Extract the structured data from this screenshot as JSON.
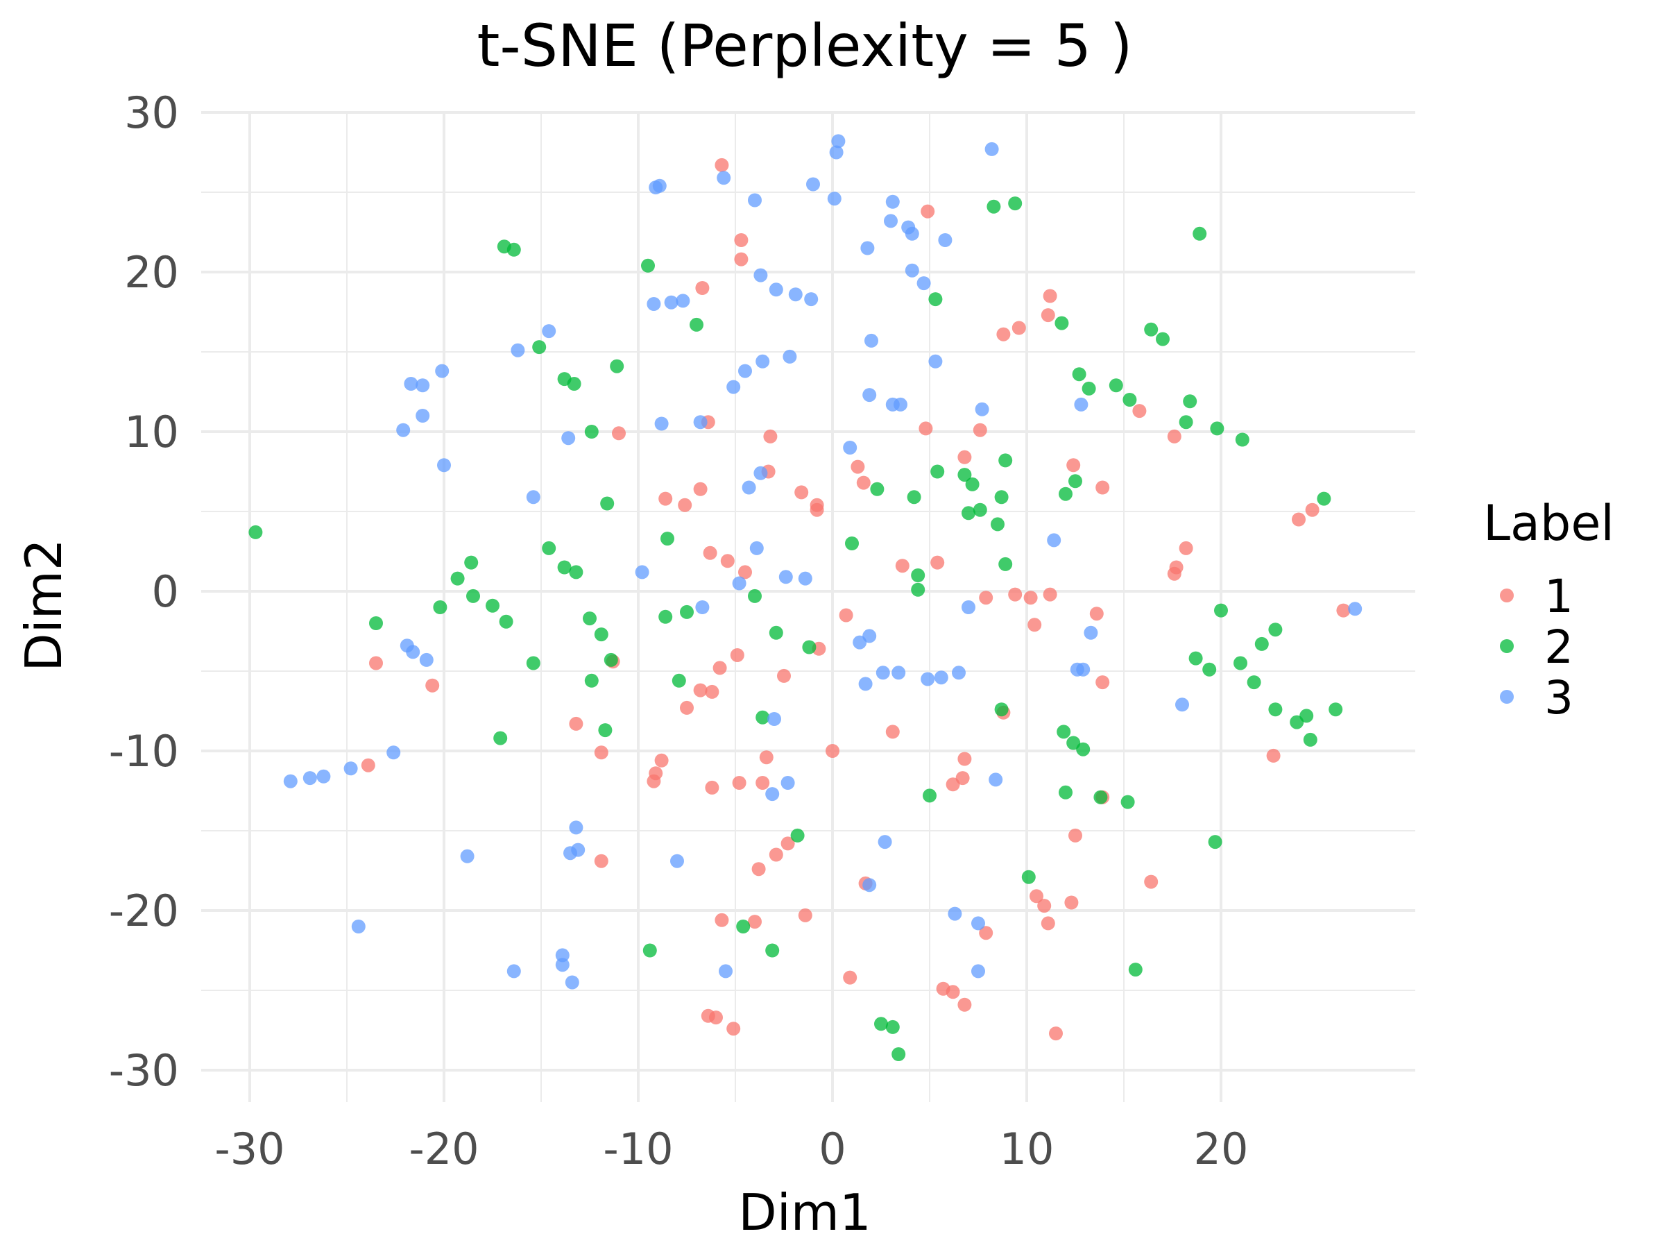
{
  "chart_data": {
    "type": "scatter",
    "title": "t-SNE (Perplexity = 5 )",
    "xlabel": "Dim1",
    "ylabel": "Dim2",
    "xlim": [
      -32.5,
      30
    ],
    "ylim": [
      -32,
      30
    ],
    "xticks": [
      -30,
      -20,
      -10,
      0,
      10,
      20
    ],
    "xtick_labels": [
      "-30",
      "-20",
      "-10",
      "0",
      "10",
      "20"
    ],
    "yticks": [
      -30,
      -20,
      -10,
      0,
      10,
      20,
      30
    ],
    "ytick_labels": [
      "-30",
      "-20",
      "-10",
      "0",
      "10",
      "20",
      "30"
    ],
    "grid": true,
    "legend": {
      "title": "Label",
      "position": "right",
      "entries": [
        "1",
        "2",
        "3"
      ]
    },
    "series": [
      {
        "name": "1",
        "color": "#F8766D",
        "points": [
          [
            -5.7,
            26.7
          ],
          [
            -4.7,
            22.0
          ],
          [
            -4.7,
            20.8
          ],
          [
            -6.7,
            19.0
          ],
          [
            -11.0,
            9.9
          ],
          [
            -6.4,
            10.6
          ],
          [
            -3.2,
            9.7
          ],
          [
            -8.6,
            5.8
          ],
          [
            -7.6,
            5.4
          ],
          [
            -6.8,
            6.4
          ],
          [
            -3.3,
            7.5
          ],
          [
            -1.6,
            6.2
          ],
          [
            -0.8,
            5.4
          ],
          [
            -0.8,
            5.1
          ],
          [
            1.3,
            7.8
          ],
          [
            1.6,
            6.8
          ],
          [
            -6.3,
            2.4
          ],
          [
            -5.4,
            1.9
          ],
          [
            -4.5,
            1.2
          ],
          [
            0.7,
            -1.5
          ],
          [
            -0.7,
            -3.6
          ],
          [
            -5.8,
            -4.8
          ],
          [
            -4.9,
            -4.0
          ],
          [
            -2.5,
            -5.3
          ],
          [
            -7.5,
            -7.3
          ],
          [
            -6.8,
            -6.2
          ],
          [
            -6.2,
            -6.3
          ],
          [
            -23.5,
            -4.5
          ],
          [
            -20.6,
            -5.9
          ],
          [
            -23.9,
            -10.9
          ],
          [
            -13.2,
            -8.3
          ],
          [
            -11.9,
            -10.1
          ],
          [
            -11.3,
            -4.4
          ],
          [
            -8.8,
            -10.6
          ],
          [
            -9.1,
            -11.4
          ],
          [
            -9.2,
            -11.9
          ],
          [
            -6.2,
            -12.3
          ],
          [
            -4.8,
            -12.0
          ],
          [
            -3.6,
            -12.0
          ],
          [
            -3.4,
            -10.4
          ],
          [
            0.0,
            -10.0
          ],
          [
            3.1,
            -8.8
          ],
          [
            -11.9,
            -16.9
          ],
          [
            -3.8,
            -17.4
          ],
          [
            -2.9,
            -16.5
          ],
          [
            -2.3,
            -15.8
          ],
          [
            -5.7,
            -20.6
          ],
          [
            -4.0,
            -20.7
          ],
          [
            -1.4,
            -20.3
          ],
          [
            -6.4,
            -26.6
          ],
          [
            -6.0,
            -26.7
          ],
          [
            -5.1,
            -27.4
          ],
          [
            0.9,
            -24.2
          ],
          [
            1.7,
            -18.3
          ],
          [
            3.6,
            1.6
          ],
          [
            5.4,
            1.8
          ],
          [
            4.8,
            10.2
          ],
          [
            6.8,
            8.4
          ],
          [
            7.6,
            10.1
          ],
          [
            4.9,
            23.8
          ],
          [
            8.8,
            16.1
          ],
          [
            9.6,
            16.5
          ],
          [
            11.2,
            18.5
          ],
          [
            11.1,
            17.3
          ],
          [
            12.4,
            7.9
          ],
          [
            13.9,
            6.5
          ],
          [
            15.8,
            11.3
          ],
          [
            17.6,
            9.7
          ],
          [
            18.2,
            2.7
          ],
          [
            17.6,
            1.1
          ],
          [
            17.7,
            1.5
          ],
          [
            7.9,
            -0.4
          ],
          [
            9.4,
            -0.2
          ],
          [
            10.2,
            -0.4
          ],
          [
            10.4,
            -2.1
          ],
          [
            11.2,
            -0.2
          ],
          [
            13.6,
            -1.4
          ],
          [
            13.9,
            -5.7
          ],
          [
            13.9,
            -12.9
          ],
          [
            12.5,
            -15.3
          ],
          [
            12.3,
            -19.5
          ],
          [
            10.9,
            -19.7
          ],
          [
            10.5,
            -19.1
          ],
          [
            11.1,
            -20.8
          ],
          [
            6.8,
            -10.5
          ],
          [
            6.7,
            -11.7
          ],
          [
            6.2,
            -12.1
          ],
          [
            8.8,
            -7.6
          ],
          [
            7.9,
            -21.4
          ],
          [
            5.7,
            -24.9
          ],
          [
            6.2,
            -25.1
          ],
          [
            6.8,
            -25.9
          ],
          [
            11.5,
            -27.7
          ],
          [
            16.4,
            -18.2
          ],
          [
            22.7,
            -10.3
          ],
          [
            24.0,
            4.5
          ],
          [
            24.7,
            5.1
          ],
          [
            26.3,
            -1.2
          ]
        ]
      },
      {
        "name": "2",
        "color": "#00BA38",
        "points": [
          [
            -29.7,
            3.7
          ],
          [
            -16.9,
            21.6
          ],
          [
            -16.4,
            21.4
          ],
          [
            -9.5,
            20.4
          ],
          [
            -7.0,
            16.7
          ],
          [
            -15.1,
            15.3
          ],
          [
            -13.8,
            13.3
          ],
          [
            -13.3,
            13.0
          ],
          [
            -11.1,
            14.1
          ],
          [
            -12.4,
            10.0
          ],
          [
            -11.6,
            5.5
          ],
          [
            -14.6,
            2.7
          ],
          [
            -13.8,
            1.5
          ],
          [
            -13.2,
            1.2
          ],
          [
            -18.6,
            1.8
          ],
          [
            -19.3,
            0.8
          ],
          [
            -18.5,
            -0.3
          ],
          [
            -17.5,
            -0.9
          ],
          [
            -16.8,
            -1.9
          ],
          [
            -20.2,
            -1.0
          ],
          [
            -23.5,
            -2.0
          ],
          [
            -15.4,
            -4.5
          ],
          [
            -12.5,
            -1.7
          ],
          [
            -11.9,
            -2.7
          ],
          [
            -11.4,
            -4.3
          ],
          [
            -12.4,
            -5.6
          ],
          [
            -11.7,
            -8.7
          ],
          [
            -17.1,
            -9.2
          ],
          [
            -8.5,
            3.3
          ],
          [
            -8.6,
            -1.6
          ],
          [
            -7.5,
            -1.3
          ],
          [
            -7.9,
            -5.6
          ],
          [
            -4.0,
            -0.3
          ],
          [
            -2.9,
            -2.6
          ],
          [
            -3.6,
            -7.9
          ],
          [
            -1.2,
            -3.5
          ],
          [
            1.0,
            3.0
          ],
          [
            2.3,
            6.4
          ],
          [
            4.2,
            5.9
          ],
          [
            4.4,
            1.0
          ],
          [
            4.4,
            0.1
          ],
          [
            5.4,
            7.5
          ],
          [
            6.8,
            7.3
          ],
          [
            7.2,
            6.7
          ],
          [
            7.0,
            4.9
          ],
          [
            7.6,
            5.1
          ],
          [
            8.5,
            4.2
          ],
          [
            8.7,
            5.9
          ],
          [
            8.9,
            8.2
          ],
          [
            8.9,
            1.7
          ],
          [
            5.3,
            18.3
          ],
          [
            8.3,
            24.1
          ],
          [
            9.4,
            24.3
          ],
          [
            11.8,
            16.8
          ],
          [
            12.7,
            13.6
          ],
          [
            13.2,
            12.7
          ],
          [
            12.0,
            6.1
          ],
          [
            12.5,
            6.9
          ],
          [
            14.6,
            12.9
          ],
          [
            15.3,
            12.0
          ],
          [
            16.4,
            16.4
          ],
          [
            17.0,
            15.8
          ],
          [
            18.4,
            11.9
          ],
          [
            18.2,
            10.6
          ],
          [
            18.9,
            22.4
          ],
          [
            19.8,
            10.2
          ],
          [
            21.1,
            9.5
          ],
          [
            25.3,
            5.8
          ],
          [
            20.0,
            -1.2
          ],
          [
            18.7,
            -4.2
          ],
          [
            19.4,
            -4.9
          ],
          [
            21.0,
            -4.5
          ],
          [
            21.7,
            -5.7
          ],
          [
            22.1,
            -3.3
          ],
          [
            22.8,
            -2.4
          ],
          [
            22.8,
            -7.4
          ],
          [
            23.9,
            -8.2
          ],
          [
            24.4,
            -7.8
          ],
          [
            24.6,
            -9.3
          ],
          [
            25.9,
            -7.4
          ],
          [
            8.7,
            -7.4
          ],
          [
            11.9,
            -8.8
          ],
          [
            12.4,
            -9.5
          ],
          [
            12.9,
            -9.9
          ],
          [
            12.0,
            -12.6
          ],
          [
            13.8,
            -12.9
          ],
          [
            15.2,
            -13.2
          ],
          [
            10.1,
            -17.9
          ],
          [
            15.6,
            -23.7
          ],
          [
            19.7,
            -15.7
          ],
          [
            5.0,
            -12.8
          ],
          [
            -1.8,
            -15.3
          ],
          [
            -3.1,
            -22.5
          ],
          [
            -4.6,
            -21.0
          ],
          [
            -9.4,
            -22.5
          ],
          [
            2.5,
            -27.1
          ],
          [
            3.1,
            -27.3
          ],
          [
            3.4,
            -29.0
          ]
        ]
      },
      {
        "name": "3",
        "color": "#619CFF",
        "points": [
          [
            0.3,
            28.2
          ],
          [
            0.2,
            27.5
          ],
          [
            8.2,
            27.7
          ],
          [
            -5.6,
            25.9
          ],
          [
            -9.1,
            25.3
          ],
          [
            -8.9,
            25.4
          ],
          [
            -4.0,
            24.5
          ],
          [
            -1.0,
            25.5
          ],
          [
            0.1,
            24.6
          ],
          [
            3.1,
            24.4
          ],
          [
            3.0,
            23.2
          ],
          [
            3.9,
            22.8
          ],
          [
            4.1,
            22.4
          ],
          [
            5.8,
            22.0
          ],
          [
            1.8,
            21.5
          ],
          [
            4.1,
            20.1
          ],
          [
            4.7,
            19.3
          ],
          [
            -3.7,
            19.8
          ],
          [
            -2.9,
            18.9
          ],
          [
            -1.9,
            18.6
          ],
          [
            -1.1,
            18.3
          ],
          [
            -9.2,
            18.0
          ],
          [
            -8.3,
            18.1
          ],
          [
            -7.7,
            18.2
          ],
          [
            2.0,
            15.7
          ],
          [
            -2.2,
            14.7
          ],
          [
            -3.6,
            14.4
          ],
          [
            -4.5,
            13.8
          ],
          [
            -5.1,
            12.8
          ],
          [
            5.3,
            14.4
          ],
          [
            1.9,
            12.3
          ],
          [
            3.1,
            11.7
          ],
          [
            3.5,
            11.7
          ],
          [
            7.7,
            11.4
          ],
          [
            12.8,
            11.7
          ],
          [
            -6.8,
            10.6
          ],
          [
            -8.8,
            10.5
          ],
          [
            -13.6,
            9.6
          ],
          [
            0.9,
            9.0
          ],
          [
            -15.4,
            5.9
          ],
          [
            -3.7,
            7.4
          ],
          [
            -4.3,
            6.5
          ],
          [
            -14.6,
            16.3
          ],
          [
            -16.2,
            15.1
          ],
          [
            -20.1,
            13.8
          ],
          [
            -21.7,
            13.0
          ],
          [
            -21.1,
            12.9
          ],
          [
            -21.1,
            11.0
          ],
          [
            -22.1,
            10.1
          ],
          [
            -20.0,
            7.9
          ],
          [
            11.4,
            3.2
          ],
          [
            -3.9,
            2.7
          ],
          [
            -9.8,
            1.2
          ],
          [
            -4.8,
            0.5
          ],
          [
            -2.4,
            0.9
          ],
          [
            -1.4,
            0.8
          ],
          [
            -6.7,
            -1.0
          ],
          [
            7.0,
            -1.0
          ],
          [
            26.9,
            -1.1
          ],
          [
            13.3,
            -2.6
          ],
          [
            1.4,
            -3.2
          ],
          [
            1.9,
            -2.8
          ],
          [
            -21.9,
            -3.4
          ],
          [
            -21.6,
            -3.8
          ],
          [
            -20.9,
            -4.3
          ],
          [
            2.6,
            -5.1
          ],
          [
            3.4,
            -5.1
          ],
          [
            1.7,
            -5.8
          ],
          [
            4.9,
            -5.5
          ],
          [
            5.6,
            -5.4
          ],
          [
            6.5,
            -5.1
          ],
          [
            12.6,
            -4.9
          ],
          [
            12.9,
            -4.9
          ],
          [
            18.0,
            -7.1
          ],
          [
            -3.0,
            -8.0
          ],
          [
            -2.3,
            -12.0
          ],
          [
            -3.1,
            -12.7
          ],
          [
            8.4,
            -11.8
          ],
          [
            -22.6,
            -10.1
          ],
          [
            -24.8,
            -11.1
          ],
          [
            -26.2,
            -11.6
          ],
          [
            -26.9,
            -11.7
          ],
          [
            -27.9,
            -11.9
          ],
          [
            -13.2,
            -14.8
          ],
          [
            -13.1,
            -16.2
          ],
          [
            -13.5,
            -16.4
          ],
          [
            -18.8,
            -16.6
          ],
          [
            -8.0,
            -16.9
          ],
          [
            2.7,
            -15.7
          ],
          [
            1.9,
            -18.4
          ],
          [
            6.3,
            -20.2
          ],
          [
            7.5,
            -20.8
          ],
          [
            -24.4,
            -21.0
          ],
          [
            -13.9,
            -22.8
          ],
          [
            -13.9,
            -23.4
          ],
          [
            -13.4,
            -24.5
          ],
          [
            -16.4,
            -23.8
          ],
          [
            -5.5,
            -23.8
          ],
          [
            7.5,
            -23.8
          ]
        ]
      }
    ]
  }
}
